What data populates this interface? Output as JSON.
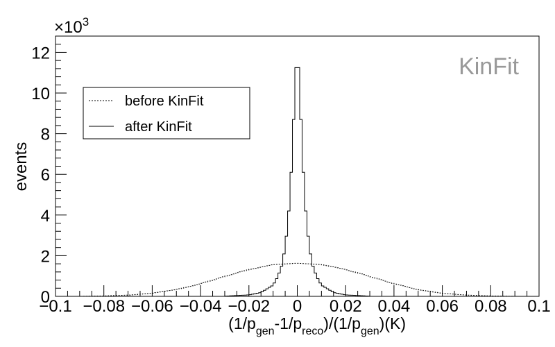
{
  "chart_data": {
    "type": "step-histogram",
    "annotation": "KinFit",
    "multiplier_label": "×10",
    "multiplier_exp": "3",
    "xlabel": "(1/p_gen-1/p_reco)/(1/p_gen)(K)",
    "xlabel_parts": [
      "(1/p",
      "gen",
      "-1/p",
      "reco",
      ")/(1/p",
      "gen",
      ")(K)"
    ],
    "ylabel": "events",
    "xlim": [
      -0.1,
      0.1
    ],
    "ylim": [
      0,
      12.8
    ],
    "y_unit_scale": 1000,
    "x_ticks": [
      -0.1,
      -0.08,
      -0.06,
      -0.04,
      -0.02,
      0,
      0.02,
      0.04,
      0.06,
      0.08,
      0.1
    ],
    "x_tick_labels": [
      "−0.1",
      "−0.08",
      "−0.06",
      "−0.04",
      "−0.02",
      "0",
      "0.02",
      "0.04",
      "0.06",
      "0.08",
      "0.1"
    ],
    "y_ticks": [
      0,
      2,
      4,
      6,
      8,
      10,
      12
    ],
    "y_tick_labels": [
      "0",
      "2",
      "4",
      "6",
      "8",
      "10",
      "12"
    ],
    "legend": {
      "position": "top-left",
      "entries": [
        {
          "label": "before KinFit",
          "style": "dotted"
        },
        {
          "label": "after KinFit",
          "style": "solid"
        }
      ]
    },
    "series": [
      {
        "name": "before KinFit",
        "style": "dotted",
        "x": [
          -0.1,
          -0.09,
          -0.08,
          -0.07,
          -0.06,
          -0.05,
          -0.04,
          -0.03,
          -0.02,
          -0.01,
          0,
          0.01,
          0.02,
          0.03,
          0.04,
          0.05,
          0.06,
          0.07,
          0.08,
          0.09,
          0.1
        ],
        "y": [
          0.0,
          0.0,
          0.02,
          0.06,
          0.15,
          0.33,
          0.62,
          0.98,
          1.32,
          1.56,
          1.63,
          1.56,
          1.32,
          0.98,
          0.62,
          0.33,
          0.15,
          0.06,
          0.02,
          0.0,
          0.0
        ]
      },
      {
        "name": "after KinFit",
        "style": "solid",
        "x": [
          -0.03,
          -0.02,
          -0.015,
          -0.01,
          -0.008,
          -0.006,
          -0.004,
          -0.003,
          -0.002,
          -0.001,
          0,
          0.001,
          0.002,
          0.003,
          0.004,
          0.006,
          0.008,
          0.01,
          0.015,
          0.02,
          0.03
        ],
        "y": [
          0.01,
          0.07,
          0.19,
          0.55,
          0.98,
          1.65,
          3.4,
          5.0,
          7.2,
          10.2,
          12.3,
          10.2,
          7.2,
          5.0,
          3.4,
          1.65,
          0.98,
          0.55,
          0.19,
          0.07,
          0.01
        ]
      }
    ]
  }
}
